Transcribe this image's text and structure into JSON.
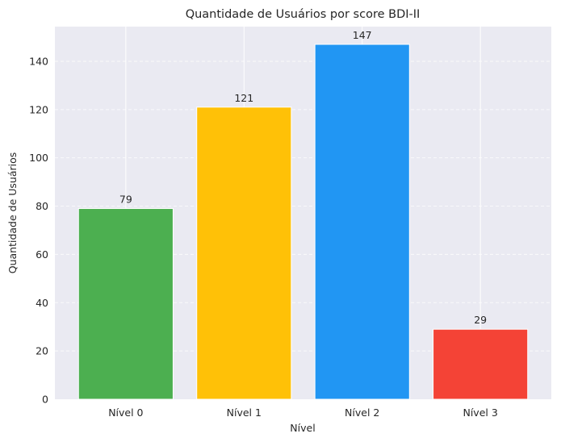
{
  "chart_data": {
    "type": "bar",
    "title": "Quantidade de Usuários por score BDI-II",
    "xlabel": "Nível",
    "ylabel": "Quantidade de Usuários",
    "categories": [
      "Nível 0",
      "Nível 1",
      "Nível 2",
      "Nível 3"
    ],
    "values": [
      79,
      121,
      147,
      29
    ],
    "colors": [
      "#4caf50",
      "#ffc107",
      "#2196f3",
      "#f44336"
    ],
    "ylim": [
      0,
      154.35
    ],
    "yticks": [
      0,
      20,
      40,
      60,
      80,
      100,
      120,
      140
    ],
    "grid": true,
    "background": "#eaeaf2"
  }
}
